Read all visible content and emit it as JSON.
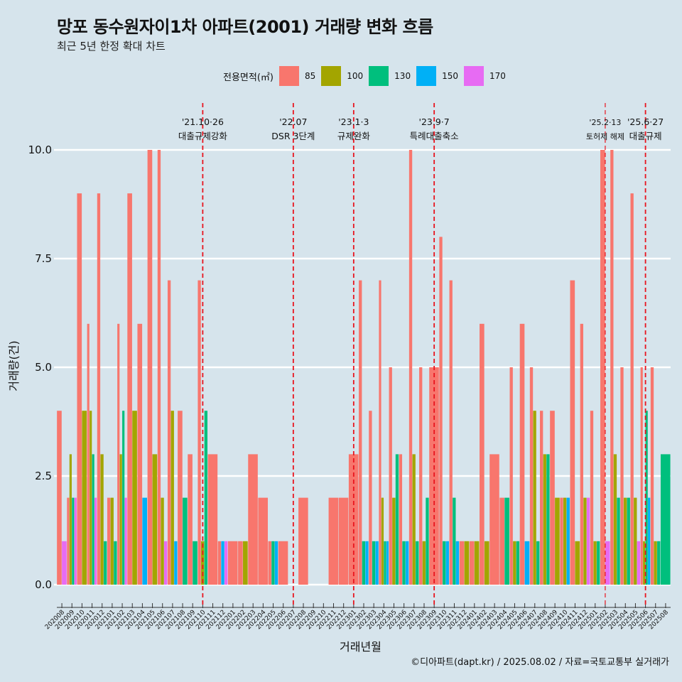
{
  "title": "망포 동수원자이1차 아파트(2001) 거래량 변화 흐름",
  "subtitle": "최근 5년 한정 확대 차트",
  "caption": "©디아파트(dapt.kr) / 2025.08.02 / 자료=국토교통부 실거래가",
  "colors": {
    "background": "#d6e4ec",
    "grid": "#ffffff",
    "vline": "#e8141e"
  },
  "legend": {
    "title": "전용면적(㎡)",
    "items": [
      {
        "label": "85",
        "color": "#f8766d"
      },
      {
        "label": "100",
        "color": "#a3a500"
      },
      {
        "label": "130",
        "color": "#00bf7d"
      },
      {
        "label": "150",
        "color": "#00b0f6"
      },
      {
        "label": "170",
        "color": "#e76bf3"
      }
    ]
  },
  "chart_data": {
    "type": "bar",
    "xlabel": "거래년월",
    "ylabel": "거래량(건)",
    "ylim": [
      0,
      10
    ],
    "yticks": [
      "0.0",
      "2.5",
      "5.0",
      "7.5",
      "10.0"
    ],
    "grid": true,
    "legend_position": "top",
    "categories": [
      "202008",
      "202009",
      "202010",
      "202011",
      "202012",
      "202101",
      "202102",
      "202103",
      "202104",
      "202105",
      "202106",
      "202107",
      "202108",
      "202109",
      "202110",
      "202111",
      "202112",
      "202201",
      "202202",
      "202203",
      "202204",
      "202205",
      "202206",
      "202207",
      "202208",
      "202209",
      "202210",
      "202211",
      "202212",
      "202301",
      "202302",
      "202303",
      "202304",
      "202305",
      "202306",
      "202307",
      "202308",
      "202309",
      "202310",
      "202311",
      "202312",
      "202401",
      "202402",
      "202403",
      "202404",
      "202405",
      "202406",
      "202407",
      "202408",
      "202409",
      "202410",
      "202411",
      "202412",
      "202501",
      "202502",
      "202503",
      "202504",
      "202505",
      "202506",
      "202507",
      "202508"
    ],
    "series": [
      {
        "name": "85",
        "values": [
          4,
          2,
          9,
          6,
          9,
          2,
          6,
          9,
          6,
          10,
          10,
          7,
          4,
          3,
          7,
          3,
          1,
          1,
          1,
          3,
          2,
          1,
          1,
          0,
          2,
          0,
          0,
          2,
          2,
          3,
          7,
          4,
          7,
          5,
          3,
          10,
          5,
          5,
          8,
          7,
          1,
          1,
          6,
          3,
          2,
          5,
          6,
          5,
          4,
          4,
          2,
          7,
          6,
          4,
          10,
          10,
          5,
          9,
          5,
          5,
          0
        ]
      },
      {
        "name": "100",
        "values": [
          0,
          3,
          4,
          4,
          3,
          2,
          3,
          4,
          0,
          3,
          2,
          4,
          0,
          0,
          1,
          0,
          0,
          0,
          1,
          0,
          0,
          0,
          0,
          0,
          0,
          0,
          0,
          0,
          0,
          0,
          0,
          0,
          2,
          2,
          0,
          3,
          1,
          0,
          0,
          0,
          1,
          1,
          1,
          0,
          0,
          1,
          0,
          4,
          3,
          2,
          2,
          1,
          2,
          1,
          0,
          3,
          2,
          2,
          1,
          1,
          0
        ]
      },
      {
        "name": "130",
        "values": [
          0,
          2,
          0,
          3,
          1,
          1,
          4,
          0,
          0,
          0,
          0,
          0,
          2,
          1,
          4,
          0,
          0,
          0,
          0,
          0,
          0,
          1,
          0,
          0,
          0,
          0,
          0,
          0,
          0,
          0,
          1,
          1,
          1,
          3,
          1,
          1,
          2,
          0,
          1,
          2,
          0,
          0,
          0,
          0,
          2,
          1,
          0,
          1,
          3,
          0,
          0,
          0,
          0,
          1,
          0,
          2,
          2,
          0,
          4,
          1,
          3
        ]
      },
      {
        "name": "150",
        "values": [
          0,
          0,
          0,
          0,
          0,
          0,
          0,
          0,
          2,
          0,
          0,
          1,
          0,
          0,
          0,
          0,
          1,
          0,
          0,
          0,
          0,
          1,
          0,
          0,
          0,
          0,
          0,
          0,
          0,
          0,
          1,
          1,
          1,
          0,
          1,
          0,
          0,
          0,
          1,
          1,
          0,
          0,
          0,
          0,
          0,
          0,
          1,
          0,
          0,
          0,
          2,
          0,
          0,
          0,
          0,
          0,
          0,
          0,
          2,
          0,
          0
        ]
      },
      {
        "name": "170",
        "values": [
          1,
          2,
          0,
          2,
          0,
          0,
          2,
          0,
          0,
          0,
          1,
          0,
          0,
          0,
          0,
          0,
          1,
          0,
          0,
          0,
          0,
          0,
          0,
          0,
          0,
          0,
          0,
          0,
          0,
          0,
          0,
          0,
          0,
          0,
          0,
          0,
          0,
          0,
          0,
          0,
          0,
          0,
          0,
          0,
          0,
          0,
          0,
          0,
          0,
          0,
          0,
          0,
          2,
          0,
          1,
          0,
          0,
          1,
          0,
          0,
          0
        ]
      }
    ],
    "events": [
      {
        "category": "202110",
        "date": "'21.10·26",
        "label": "대출규제강화"
      },
      {
        "category": "202207",
        "date": "'22.07",
        "label": "DSR 3단계"
      },
      {
        "category": "202301",
        "date": "'23.1·3",
        "label": "규제완화"
      },
      {
        "category": "202309",
        "date": "'23.9·7",
        "label": "특례대출축소"
      },
      {
        "category": "202502",
        "date": "'25.2·13",
        "label": "토허제 해제"
      },
      {
        "category": "202506",
        "date": "'25.6·27",
        "label": "대출규제"
      }
    ]
  }
}
